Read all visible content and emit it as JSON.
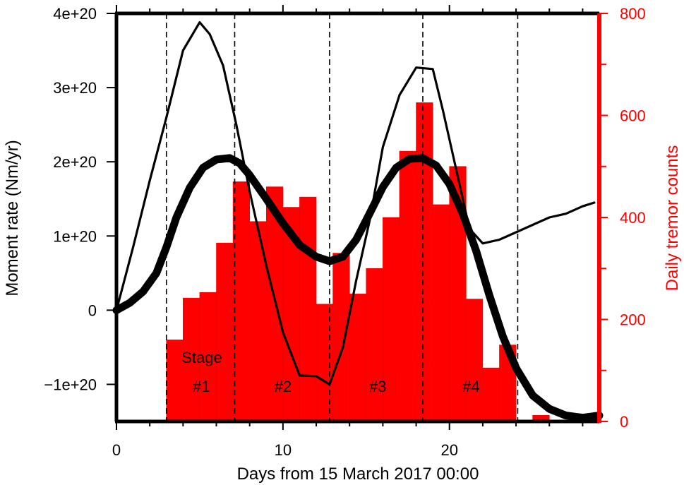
{
  "chart_data": {
    "type": "bar+line",
    "title": "",
    "xlabel": "Days from 15 March 2017 00:00",
    "ylabel_left": "Moment rate (Nm/yr)",
    "ylabel_right": "Daily tremor counts",
    "xlim": [
      0,
      29
    ],
    "ylim_left": [
      -1.5e+20,
      4e+20
    ],
    "ylim_right": [
      0,
      800
    ],
    "x_ticks_major": [
      0,
      10,
      20
    ],
    "x_tick_labels": [
      "0",
      "10",
      "20"
    ],
    "y_left_ticks": [
      -1e+20,
      0,
      1e+20,
      2e+20,
      3e+20,
      4e+20
    ],
    "y_left_tick_labels": [
      "−1e+20",
      "0",
      "1e+20",
      "2e+20",
      "3e+20",
      "4e+20"
    ],
    "y_right_ticks": [
      0,
      200,
      400,
      600,
      800
    ],
    "y_right_tick_labels": [
      "0",
      "200",
      "400",
      "600",
      "800"
    ],
    "colors": {
      "bars": "#ff0000",
      "right_axis": "#ff0000",
      "lines": "#000000",
      "frame": "#000000"
    },
    "tremor_bars": {
      "x_start": [
        3,
        4,
        5,
        6,
        7,
        8,
        9,
        10,
        11,
        12,
        13,
        14,
        15,
        16,
        17,
        18,
        19,
        20,
        21,
        22,
        23,
        25
      ],
      "bar_width": 1,
      "counts": [
        160,
        242,
        253,
        350,
        470,
        392,
        460,
        420,
        440,
        230,
        330,
        250,
        300,
        400,
        530,
        625,
        425,
        500,
        240,
        105,
        150,
        12
      ]
    },
    "series": [
      {
        "style": "thin",
        "x": [
          0,
          1,
          2,
          3,
          4,
          5,
          5.6,
          6.4,
          7.2,
          8,
          9,
          10,
          11,
          12,
          12.8,
          13.6,
          14.4,
          15.2,
          16,
          17,
          18,
          19,
          19.6,
          20.4,
          21.2,
          22,
          23,
          24,
          25,
          26,
          27,
          28,
          28.7
        ],
        "y": [
          0,
          8.5e+19,
          1.75e+20,
          2.6e+20,
          3.5e+20,
          3.88e+20,
          3.72e+20,
          3.3e+20,
          2.5e+20,
          1.6e+20,
          6e+19,
          -3e+19,
          -8.8e+19,
          -8.9e+19,
          -1e+20,
          -5e+19,
          4e+19,
          1.2e+20,
          2.2e+20,
          2.9e+20,
          3.27e+20,
          3.25e+20,
          2.7e+20,
          1.9e+20,
          1.1e+20,
          9e+19,
          9.5e+19,
          1.05e+20,
          1.15e+20,
          1.25e+20,
          1.3e+20,
          1.4e+20,
          1.45e+20
        ]
      },
      {
        "style": "thick",
        "x": [
          0,
          0.8,
          1.6,
          2.4,
          3,
          3.6,
          4.4,
          5.2,
          6,
          6.8,
          7.4,
          8,
          9,
          10,
          11,
          12,
          12.8,
          13.6,
          14.4,
          15.2,
          16,
          16.8,
          17.6,
          18.4,
          19.2,
          20,
          20.8,
          21.6,
          22.4,
          23.2,
          24,
          25,
          26,
          27,
          28,
          29
        ],
        "y": [
          0,
          1e+19,
          2.5e+19,
          5e+19,
          8.5e+19,
          1.25e+20,
          1.65e+20,
          1.92e+20,
          2.03e+20,
          2.05e+20,
          1.98e+20,
          1.82e+20,
          1.5e+20,
          1.17e+20,
          8.8e+19,
          7.2e+19,
          6.6e+19,
          7.2e+19,
          9.5e+19,
          1.3e+20,
          1.66e+20,
          1.92e+20,
          2.04e+20,
          2.05e+20,
          1.95e+20,
          1.7e+20,
          1.3e+20,
          8e+19,
          2e+19,
          -3.5e+19,
          -7.8e+19,
          -1.15e+20,
          -1.33e+20,
          -1.42e+20,
          -1.45e+20,
          -1.42e+20
        ]
      }
    ],
    "stage_boundaries": [
      3,
      7.1,
      12.8,
      18.4,
      24.1
    ],
    "stage_word": "Stage",
    "stages": [
      {
        "label": "#1",
        "x": 5.1
      },
      {
        "label": "#2",
        "x": 10.0
      },
      {
        "label": "#3",
        "x": 15.7
      },
      {
        "label": "#4",
        "x": 21.3
      }
    ],
    "grid": false,
    "legend": "none"
  }
}
